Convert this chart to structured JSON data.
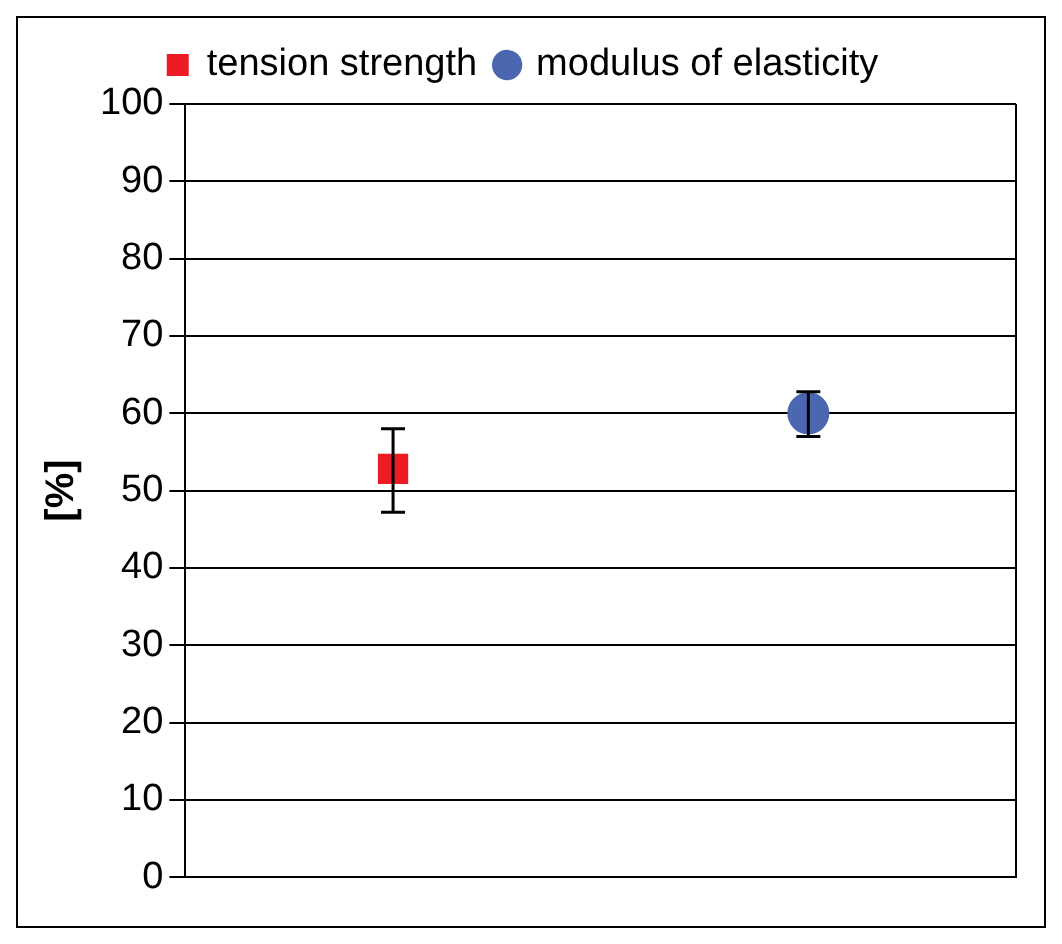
{
  "chart_data": {
    "type": "scatter",
    "categories": [
      null,
      null
    ],
    "ylabel": "[%]",
    "ylim": [
      0,
      100
    ],
    "yticks": [
      0,
      10,
      20,
      30,
      40,
      50,
      60,
      70,
      80,
      90,
      100
    ],
    "grid": "y",
    "legend": "top",
    "series": [
      {
        "name": "tension strength",
        "color": "#ed1c24",
        "marker": "square",
        "values": [
          52.8,
          null
        ],
        "errors": [
          [
            47.2,
            58
          ],
          null
        ]
      },
      {
        "name": "modulus of elasticity",
        "color": "#4a67b0",
        "marker": "circle",
        "values": [
          null,
          60
        ],
        "errors": [
          null,
          [
            57,
            62.8
          ]
        ]
      }
    ]
  }
}
